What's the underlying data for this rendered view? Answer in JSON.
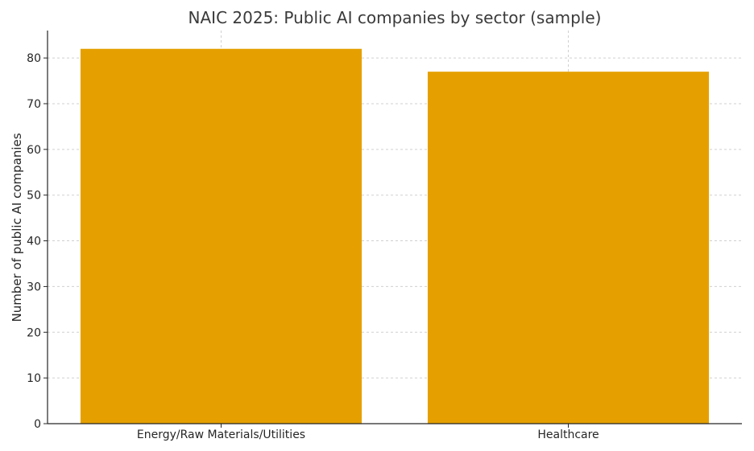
{
  "chart_data": {
    "type": "bar",
    "title": "NAIC 2025: Public AI companies by sector (sample)",
    "xlabel": "",
    "ylabel": "Number of public AI companies",
    "categories": [
      "Energy/Raw Materials/Utilities",
      "Healthcare"
    ],
    "values": [
      82,
      77
    ],
    "ylim": [
      0,
      86
    ],
    "yticks": [
      0,
      10,
      20,
      30,
      40,
      50,
      60,
      70,
      80
    ],
    "grid": true,
    "bar_color": "#e5a000",
    "grid_color": "#d0d0d0",
    "axis_color": "#262626"
  }
}
